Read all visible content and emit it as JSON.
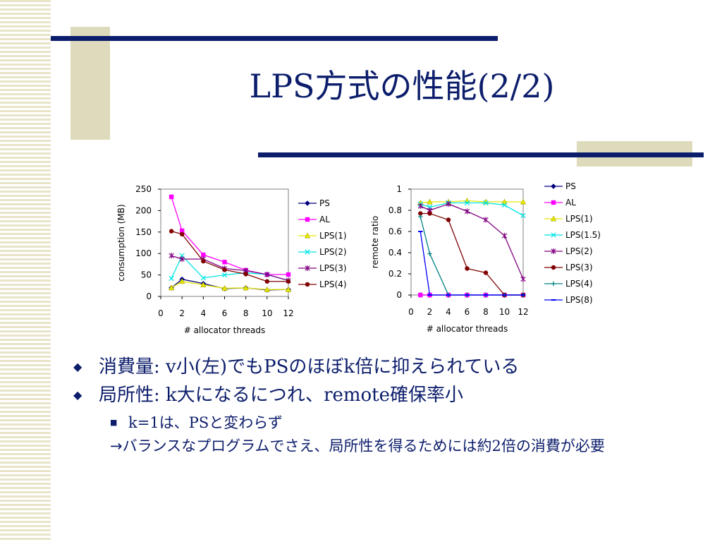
{
  "slide": {
    "title": "LPS方式の性能(2/2)",
    "colors": {
      "navy": "#0c1d6b",
      "khaki": "#dddbbb",
      "stripe": "#e8e4c8"
    }
  },
  "chart_data": [
    {
      "type": "line",
      "xlabel": "# allocator threads",
      "ylabel": "consumption (MB)",
      "xlim": [
        0,
        12
      ],
      "ylim": [
        0,
        250
      ],
      "xticks": [
        "0",
        "2",
        "4",
        "6",
        "8",
        "10",
        "12"
      ],
      "yticks": [
        "0",
        "50",
        "100",
        "150",
        "200",
        "250"
      ],
      "grid": false,
      "legend": "right",
      "x": [
        1,
        2,
        4,
        6,
        8,
        10,
        12
      ],
      "series": [
        {
          "name": "PS",
          "values": [
            20,
            40,
            30,
            18,
            20,
            15,
            16
          ],
          "color": "#000080",
          "marker": "diamond"
        },
        {
          "name": "AL",
          "values": [
            232,
            153,
            97,
            80,
            61,
            51,
            51
          ],
          "color": "#ff00ff",
          "marker": "square"
        },
        {
          "name": "LPS(1)",
          "values": [
            20,
            35,
            27,
            19,
            20,
            16,
            16
          ],
          "color": "#e6e600",
          "marker": "triangle"
        },
        {
          "name": "LPS(2)",
          "values": [
            42,
            95,
            43,
            50,
            55,
            51,
            37
          ],
          "color": "#00e5e5",
          "marker": "x"
        },
        {
          "name": "LPS(3)",
          "values": [
            95,
            87,
            87,
            65,
            60,
            51,
            37
          ],
          "color": "#800080",
          "marker": "star"
        },
        {
          "name": "LPS(4)",
          "values": [
            152,
            145,
            82,
            62,
            52,
            35,
            35
          ],
          "color": "#800000",
          "marker": "circle"
        }
      ]
    },
    {
      "type": "line",
      "xlabel": "# allocator threads",
      "ylabel": "remote ratio",
      "xlim": [
        0,
        12
      ],
      "ylim": [
        0,
        1
      ],
      "xticks": [
        "0",
        "2",
        "4",
        "6",
        "8",
        "10",
        "12"
      ],
      "yticks": [
        "0",
        "0.2",
        "0.4",
        "0.6",
        "0.8",
        "1"
      ],
      "grid": false,
      "legend": "right",
      "x": [
        1,
        2,
        4,
        6,
        8,
        10,
        12
      ],
      "series": [
        {
          "name": "PS",
          "values": [
            0,
            0,
            0,
            0,
            0,
            0,
            0
          ],
          "color": "#000080",
          "marker": "diamond"
        },
        {
          "name": "AL",
          "values": [
            0,
            0,
            0,
            0,
            0,
            0,
            0
          ],
          "color": "#ff00ff",
          "marker": "square"
        },
        {
          "name": "LPS(1)",
          "values": [
            0.87,
            0.88,
            0.88,
            0.89,
            0.88,
            0.88,
            0.88
          ],
          "color": "#e6e600",
          "marker": "triangle"
        },
        {
          "name": "LPS(1.5)",
          "values": [
            0.86,
            0.83,
            0.87,
            0.87,
            0.87,
            0.85,
            0.75
          ],
          "color": "#00e5e5",
          "marker": "x"
        },
        {
          "name": "LPS(2)",
          "values": [
            0.84,
            0.8,
            0.86,
            0.79,
            0.71,
            0.56,
            0.15
          ],
          "color": "#800080",
          "marker": "star"
        },
        {
          "name": "LPS(3)",
          "values": [
            0.77,
            0.77,
            0.71,
            0.25,
            0.21,
            0.0,
            0.0
          ],
          "color": "#800000",
          "marker": "circle"
        },
        {
          "name": "LPS(4)",
          "values": [
            0.74,
            0.39,
            0.0,
            0.0,
            0.0,
            0.0,
            0.0
          ],
          "color": "#008080",
          "marker": "plus"
        },
        {
          "name": "LPS(8)",
          "values": [
            0.6,
            0.0,
            0.0,
            0.0,
            0.0,
            0.0,
            0.0
          ],
          "color": "#0000ff",
          "marker": "dash"
        }
      ]
    }
  ],
  "bullets": [
    {
      "level": 1,
      "parts": [
        {
          "text": "消費量",
          "serif": false
        },
        {
          "text": ": v",
          "serif": true
        },
        {
          "text": "小",
          "serif": false
        },
        {
          "text": "(",
          "serif": true
        },
        {
          "text": "左",
          "serif": false
        },
        {
          "text": ")",
          "serif": true
        },
        {
          "text": "でも",
          "serif": false
        },
        {
          "text": "PS",
          "serif": true
        },
        {
          "text": "のほぼ",
          "serif": false
        },
        {
          "text": "k",
          "serif": true
        },
        {
          "text": "倍に抑えられている",
          "serif": false
        }
      ]
    },
    {
      "level": 1,
      "parts": [
        {
          "text": "局所性",
          "serif": false
        },
        {
          "text": ": k",
          "serif": true
        },
        {
          "text": "大になるにつれ、",
          "serif": false
        },
        {
          "text": "remote",
          "serif": true
        },
        {
          "text": "確保率小",
          "serif": false
        }
      ]
    },
    {
      "level": 2,
      "parts": [
        {
          "text": "k=1",
          "serif": true
        },
        {
          "text": "は、",
          "serif": false
        },
        {
          "text": "PS",
          "serif": true
        },
        {
          "text": "と変わらず",
          "serif": false
        }
      ]
    },
    {
      "level": 3,
      "parts": [
        {
          "text": "→バランスなプログラムでさえ、局所性を得るためには約",
          "serif": false
        },
        {
          "text": "2",
          "serif": true
        },
        {
          "text": "倍の消費が必要",
          "serif": false
        }
      ]
    }
  ],
  "bullet_marks": {
    "level1": "◆",
    "level2": "■"
  }
}
